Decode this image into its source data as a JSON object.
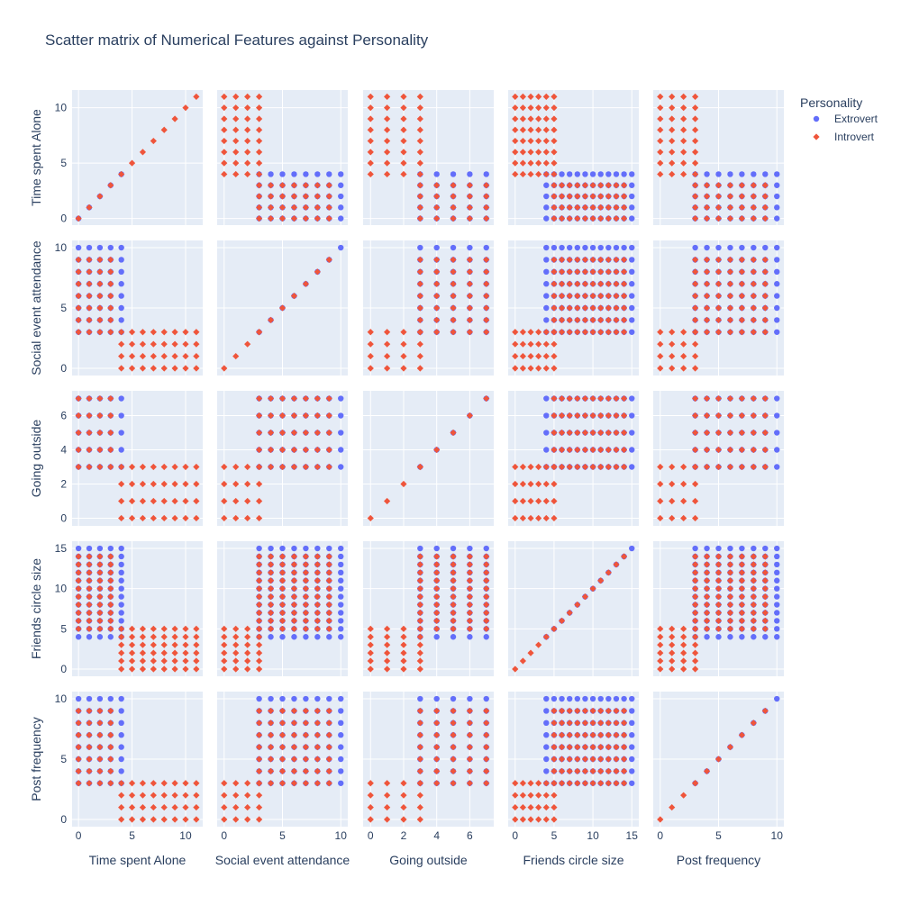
{
  "chart_data": {
    "type": "scatter",
    "title": "Scatter matrix of Numerical Features against Personality",
    "legend": {
      "title": "Personality",
      "placement": "top-right",
      "entries": [
        {
          "name": "Extrovert",
          "color": "#636efa",
          "marker": "circle"
        },
        {
          "name": "Introvert",
          "color": "#ef553b",
          "marker": "diamond"
        }
      ]
    },
    "background_color": "#e5ecf6",
    "grid": true,
    "dimensions": [
      {
        "label": "Time spent Alone",
        "range": [
          -0.6,
          11.6
        ],
        "ticks": [
          0,
          5,
          10
        ]
      },
      {
        "label": "Social event attendance",
        "range": [
          -0.6,
          10.6
        ],
        "ticks": [
          0,
          5,
          10
        ]
      },
      {
        "label": "Going outside",
        "range": [
          -0.45,
          7.45
        ],
        "ticks": [
          0,
          2,
          4,
          6
        ]
      },
      {
        "label": "Friends circle size",
        "range": [
          -0.9,
          15.9
        ],
        "ticks": [
          0,
          5,
          10,
          15
        ]
      },
      {
        "label": "Post frequency",
        "range": [
          -0.6,
          10.6
        ],
        "ticks": [
          0,
          5,
          10
        ]
      }
    ],
    "series": [
      {
        "name": "Extrovert",
        "color": "#636efa",
        "marker": "circle",
        "value_ranges": {
          "Time spent Alone": [
            0,
            4
          ],
          "Social event attendance": [
            3,
            10
          ],
          "Going outside": [
            3,
            7
          ],
          "Friends circle size": [
            4,
            15
          ],
          "Post frequency": [
            3,
            10
          ]
        }
      },
      {
        "name": "Introvert",
        "color": "#ef553b",
        "marker": "diamond",
        "value_ranges": {
          "Time spent Alone": [
            4,
            11
          ],
          "Social event attendance": [
            0,
            3
          ],
          "Going outside": [
            0,
            3
          ],
          "Friends circle size": [
            0,
            5
          ],
          "Post frequency": [
            0,
            3
          ]
        }
      },
      {
        "name": "Introvert",
        "color": "#ef553b",
        "marker": "diamond",
        "value_ranges": {
          "Time spent Alone": [
            0,
            3
          ],
          "Social event attendance": [
            3,
            9
          ],
          "Going outside": [
            3,
            7
          ],
          "Friends circle size": [
            5,
            14
          ],
          "Post frequency": [
            3,
            9
          ]
        }
      }
    ]
  }
}
